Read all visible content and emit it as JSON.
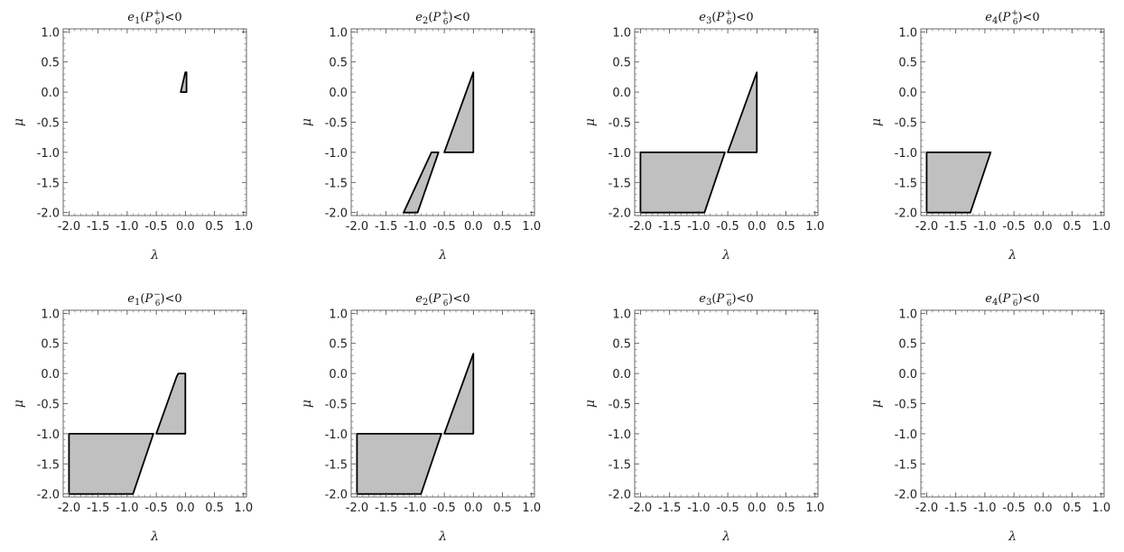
{
  "figure": {
    "xlabel": "λ",
    "ylabel": "μ",
    "xlim": [
      -2.1,
      1.05
    ],
    "ylim": [
      -2.05,
      1.05
    ],
    "xticks": [
      -2.0,
      -1.5,
      -1.0,
      -0.5,
      0.0,
      0.5,
      1.0
    ],
    "xtick_labels": [
      "-2.0",
      "-1.5",
      "-1.0",
      "-0.5",
      "0.0",
      "0.5",
      "1.0"
    ],
    "yticks": [
      -2.0,
      -1.5,
      -1.0,
      -0.5,
      0.0,
      0.5,
      1.0
    ],
    "ytick_labels": [
      "-2.0",
      "-1.5",
      "-1.0",
      "-0.5",
      "0.0",
      "0.5",
      "1.0"
    ],
    "region_fill": "#c0c0c0",
    "region_stroke": "#000000"
  },
  "chart_data": [
    {
      "type": "area",
      "title": {
        "e": "e",
        "idx": "1",
        "P": "P",
        "sub": "6",
        "sup": "+",
        "tail": "<0"
      },
      "regions": [
        [
          [
            -0.08,
            0.0
          ],
          [
            0.02,
            0.0
          ],
          [
            0.02,
            0.33
          ],
          [
            0.0,
            0.33
          ]
        ]
      ]
    },
    {
      "type": "area",
      "title": {
        "e": "e",
        "idx": "2",
        "P": "P",
        "sub": "6",
        "sup": "+",
        "tail": "<0"
      },
      "regions": [
        [
          [
            -1.2,
            -2.0
          ],
          [
            -0.96,
            -2.0
          ],
          [
            -0.6,
            -1.0
          ],
          [
            -0.72,
            -1.0
          ]
        ],
        [
          [
            -0.5,
            -1.0
          ],
          [
            0.0,
            -1.0
          ],
          [
            0.0,
            0.33
          ]
        ]
      ]
    },
    {
      "type": "area",
      "title": {
        "e": "e",
        "idx": "3",
        "P": "P",
        "sub": "6",
        "sup": "+",
        "tail": "<0"
      },
      "regions": [
        [
          [
            -2.0,
            -2.0
          ],
          [
            -0.9,
            -2.0
          ],
          [
            -0.55,
            -1.0
          ],
          [
            -2.0,
            -1.0
          ]
        ],
        [
          [
            -0.5,
            -1.0
          ],
          [
            0.0,
            -1.0
          ],
          [
            0.0,
            0.33
          ]
        ]
      ]
    },
    {
      "type": "area",
      "title": {
        "e": "e",
        "idx": "4",
        "P": "P",
        "sub": "6",
        "sup": "+",
        "tail": "<0"
      },
      "regions": [
        [
          [
            -2.0,
            -2.0
          ],
          [
            -1.25,
            -2.0
          ],
          [
            -0.9,
            -1.0
          ],
          [
            -2.0,
            -1.0
          ]
        ]
      ]
    },
    {
      "type": "area",
      "title": {
        "e": "e",
        "idx": "1",
        "P": "P",
        "sub": "6",
        "sup": "−",
        "tail": "<0"
      },
      "regions": [
        [
          [
            -2.0,
            -2.0
          ],
          [
            -0.9,
            -2.0
          ],
          [
            -0.55,
            -1.0
          ],
          [
            -2.0,
            -1.0
          ]
        ],
        [
          [
            -0.5,
            -1.0
          ],
          [
            0.0,
            -1.0
          ],
          [
            0.0,
            0.0
          ],
          [
            -0.12,
            0.0
          ],
          [
            -0.15,
            -0.05
          ]
        ]
      ]
    },
    {
      "type": "area",
      "title": {
        "e": "e",
        "idx": "2",
        "P": "P",
        "sub": "6",
        "sup": "−",
        "tail": "<0"
      },
      "regions": [
        [
          [
            -2.0,
            -2.0
          ],
          [
            -0.9,
            -2.0
          ],
          [
            -0.55,
            -1.0
          ],
          [
            -2.0,
            -1.0
          ]
        ],
        [
          [
            -0.5,
            -1.0
          ],
          [
            0.0,
            -1.0
          ],
          [
            0.0,
            0.33
          ]
        ]
      ]
    },
    {
      "type": "area",
      "title": {
        "e": "e",
        "idx": "3",
        "P": "P",
        "sub": "6",
        "sup": "−",
        "tail": "<0"
      },
      "regions": []
    },
    {
      "type": "area",
      "title": {
        "e": "e",
        "idx": "4",
        "P": "P",
        "sub": "6",
        "sup": "−",
        "tail": "<0"
      },
      "regions": []
    }
  ]
}
